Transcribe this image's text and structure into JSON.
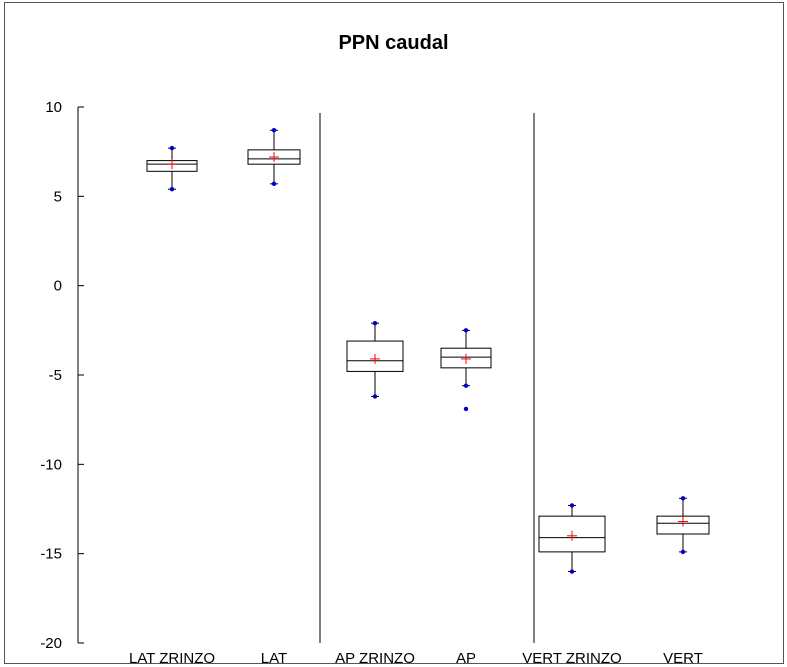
{
  "chart_data": {
    "type": "box",
    "title": "PPN caudal",
    "xlabel": "",
    "ylabel": "",
    "ylim": [
      -20,
      10
    ],
    "yticks": [
      10,
      5,
      0,
      -5,
      -10,
      -15,
      -20
    ],
    "categories": [
      "LAT ZRINZO",
      "LAT",
      "AP ZRINZO",
      "AP",
      "VERT ZRINZO",
      "VERT"
    ],
    "groups": [
      [
        "LAT ZRINZO",
        "LAT"
      ],
      [
        "AP ZRINZO",
        "AP"
      ],
      [
        "VERT ZRINZO",
        "VERT"
      ]
    ],
    "boxes": [
      {
        "category": "LAT ZRINZO",
        "whisker_low": 5.4,
        "q1": 6.4,
        "median": 6.8,
        "q3": 7.0,
        "whisker_high": 7.7,
        "mean": 6.8,
        "outliers": []
      },
      {
        "category": "LAT",
        "whisker_low": 5.7,
        "q1": 6.8,
        "median": 7.1,
        "q3": 7.6,
        "whisker_high": 8.7,
        "mean": 7.2,
        "outliers": []
      },
      {
        "category": "AP ZRINZO",
        "whisker_low": -6.2,
        "q1": -4.8,
        "median": -4.2,
        "q3": -3.1,
        "whisker_high": -2.1,
        "mean": -4.1,
        "outliers": []
      },
      {
        "category": "AP",
        "whisker_low": -5.6,
        "q1": -4.6,
        "median": -4.0,
        "q3": -3.5,
        "whisker_high": -2.5,
        "mean": -4.1,
        "outliers": [
          -6.9
        ]
      },
      {
        "category": "VERT ZRINZO",
        "whisker_low": -16.0,
        "q1": -14.9,
        "median": -14.1,
        "q3": -12.9,
        "whisker_high": -12.3,
        "mean": -14.0,
        "outliers": []
      },
      {
        "category": "VERT",
        "whisker_low": -14.9,
        "q1": -13.9,
        "median": -13.3,
        "q3": -12.9,
        "whisker_high": -11.9,
        "mean": -13.2,
        "outliers": []
      }
    ],
    "legend": "none",
    "grid": false,
    "colors": {
      "box": "#000000",
      "mean_marker": "#ff0000",
      "extreme_marker": "#0000cc"
    }
  }
}
